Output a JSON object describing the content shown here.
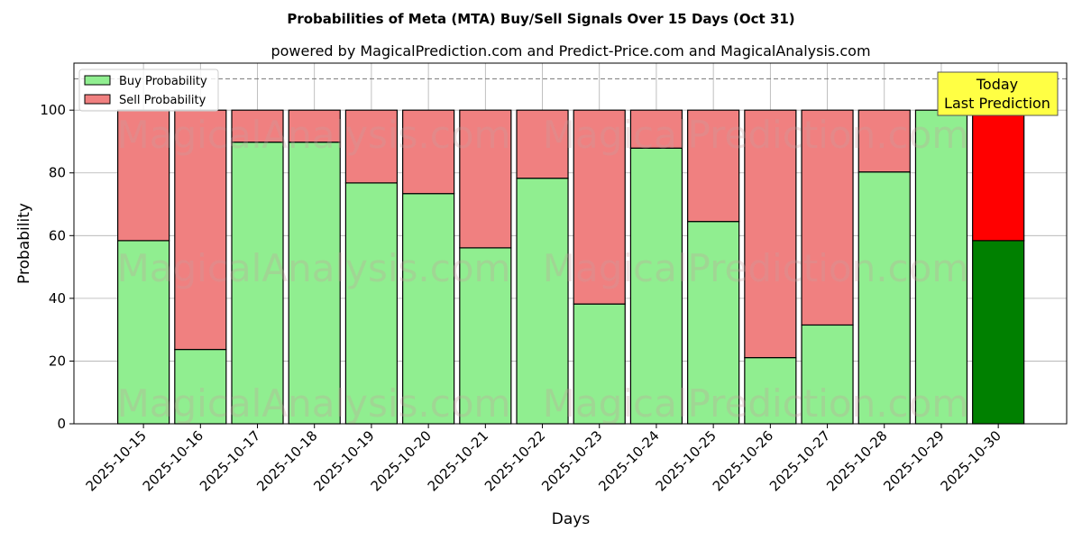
{
  "chart_data": {
    "type": "bar",
    "stacked": true,
    "title": "Probabilities of Meta (MTA) Buy/Sell Signals Over 15 Days (Oct 31)",
    "subtitle": "powered by MagicalPrediction.com and Predict-Price.com and MagicalAnalysis.com",
    "xlabel": "Days",
    "ylabel": "Probability",
    "ylim": [
      0,
      115
    ],
    "yticks": [
      0,
      20,
      40,
      60,
      80,
      100
    ],
    "grid": true,
    "legend_placement": "top-left",
    "categories": [
      "2025-10-15",
      "2025-10-16",
      "2025-10-17",
      "2025-10-18",
      "2025-10-19",
      "2025-10-20",
      "2025-10-21",
      "2025-10-22",
      "2025-10-23",
      "2025-10-24",
      "2025-10-25",
      "2025-10-26",
      "2025-10-27",
      "2025-10-28",
      "2025-10-29",
      "2025-10-30"
    ],
    "series": [
      {
        "name": "Buy Probability",
        "color": "#90ee90",
        "values": [
          58.4,
          23.7,
          89.8,
          89.8,
          76.8,
          73.4,
          56.1,
          78.3,
          38.2,
          87.9,
          64.5,
          21.1,
          31.5,
          80.3,
          100,
          58.4
        ]
      },
      {
        "name": "Sell Probability",
        "color": "#f08080",
        "values": [
          41.6,
          76.3,
          10.2,
          10.2,
          23.2,
          26.6,
          43.9,
          21.7,
          61.8,
          12.1,
          35.5,
          78.9,
          68.5,
          19.7,
          0,
          41.6
        ]
      }
    ],
    "highlight": {
      "index": 15,
      "buy_color": "#008000",
      "sell_color": "#ff0000"
    },
    "reference_line": {
      "y": 110,
      "style": "dashed"
    },
    "annotation": {
      "line1": "Today",
      "line2": "Last Prediction",
      "color": "#ffff44"
    },
    "watermarks": [
      "MagicalAnalysis.com",
      "MagicalPrediction.com"
    ]
  }
}
